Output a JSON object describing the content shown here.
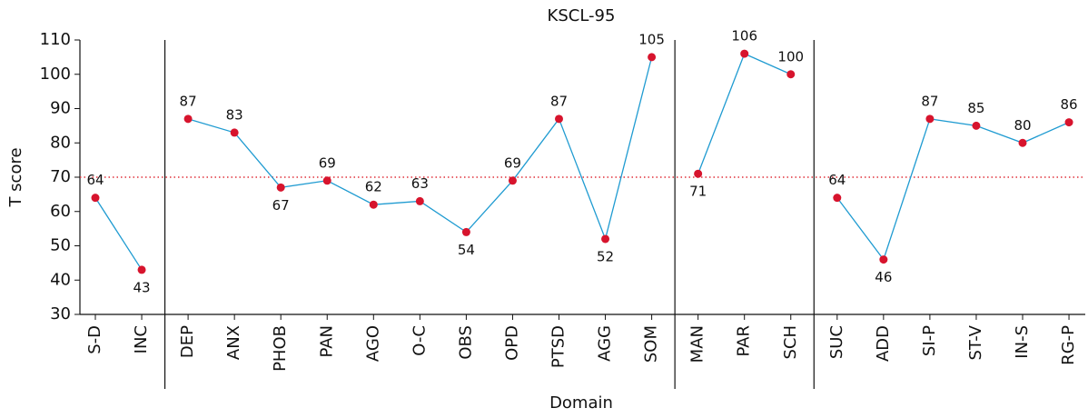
{
  "chart_data": {
    "type": "line",
    "title": "KSCL-95",
    "x_label": "Domain",
    "y_label": "T score",
    "categories": [
      "S-D",
      "INC",
      "DEP",
      "ANX",
      "PHOB",
      "PAN",
      "AGO",
      "O-C",
      "OBS",
      "OPD",
      "PTSD",
      "AGG",
      "SOM",
      "MAN",
      "PAR",
      "SCH",
      "SUC",
      "ADD",
      "SI-P",
      "ST-V",
      "IN-S",
      "RG-P"
    ],
    "series": [
      {
        "color": "#1f9bd1",
        "values": [
          64,
          43,
          null,
          null,
          null,
          null,
          null,
          null,
          null,
          null,
          null,
          null,
          null,
          null,
          null,
          null,
          null,
          null,
          null,
          null,
          null,
          null
        ]
      },
      {
        "color": "#1f9bd1",
        "values": [
          null,
          null,
          87,
          83,
          67,
          69,
          62,
          63,
          54,
          69,
          87,
          52,
          105,
          null,
          null,
          null,
          null,
          null,
          null,
          null,
          null,
          null
        ]
      },
      {
        "color": "#1f9bd1",
        "values": [
          null,
          null,
          null,
          null,
          null,
          null,
          null,
          null,
          null,
          null,
          null,
          null,
          null,
          71,
          106,
          100,
          null,
          null,
          null,
          null,
          null,
          null
        ]
      },
      {
        "color": "#1f9bd1",
        "values": [
          null,
          null,
          null,
          null,
          null,
          null,
          null,
          null,
          null,
          null,
          null,
          null,
          null,
          null,
          null,
          null,
          64,
          46,
          87,
          85,
          80,
          86
        ]
      }
    ],
    "marker_color": "#d7142d",
    "reference_line": {
      "value": 70,
      "color": "#e0303a"
    },
    "ylim": [
      30,
      110
    ],
    "yticks": [
      30,
      40,
      50,
      60,
      70,
      80,
      90,
      100,
      110
    ]
  }
}
